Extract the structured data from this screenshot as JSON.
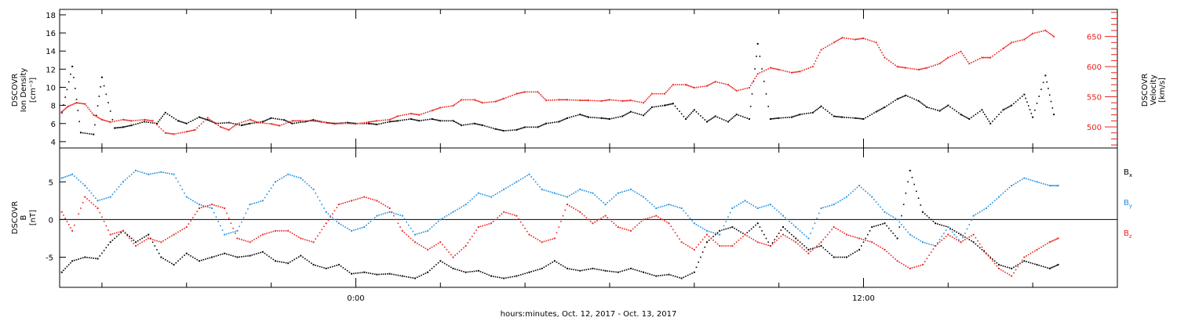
{
  "figure": {
    "xlabel": "hours:minutes, Oct. 12, 2017 - Oct. 13, 2017",
    "colors": {
      "black": "#000000",
      "red": "#e8231e",
      "blue": "#1f8fe0"
    }
  },
  "chart_data": [
    {
      "type": "scatter",
      "title": "",
      "ylabel": [
        "DSCOVR",
        "Ion Density",
        "[cm⁻³]"
      ],
      "y2label": [
        "DSCOVR",
        "Velocity",
        "[km/s]"
      ],
      "xlim": [
        -7.0,
        18.0
      ],
      "xunits": "hours relative to 00:00 Oct. 13, 2017",
      "xticks": [
        {
          "value": 0,
          "label": "0:00"
        },
        {
          "value": 12,
          "label": "12:00"
        }
      ],
      "ylim": [
        3.3,
        18.6
      ],
      "yticks": [
        4,
        6,
        8,
        10,
        12,
        14,
        16,
        18
      ],
      "y2lim": [
        465,
        695
      ],
      "y2ticks": [
        500,
        550,
        600,
        650
      ],
      "series": [
        {
          "key": "density",
          "axis": "left",
          "color": "#000000",
          "x": [
            -6.95,
            -6.7,
            -6.5,
            -6.2,
            -6.0,
            -5.7,
            -5.5,
            -5.3,
            -5.0,
            -4.7,
            -4.5,
            -4.2,
            -4.0,
            -3.7,
            -3.5,
            -3.3,
            -3.0,
            -2.7,
            -2.5,
            -2.2,
            -2.0,
            -1.7,
            -1.5,
            -1.2,
            -1.0,
            -0.7,
            -0.5,
            -0.2,
            0.0,
            0.3,
            0.5,
            0.8,
            1.0,
            1.3,
            1.5,
            1.8,
            2.0,
            2.3,
            2.5,
            2.8,
            3.0,
            3.3,
            3.5,
            3.8,
            4.0,
            4.3,
            4.5,
            4.8,
            5.0,
            5.3,
            5.5,
            5.8,
            6.0,
            6.3,
            6.5,
            6.8,
            7.0,
            7.3,
            7.5,
            7.8,
            8.0,
            8.3,
            8.5,
            8.8,
            9.0,
            9.3,
            9.5,
            9.8,
            10.0,
            10.3,
            10.5,
            10.8,
            11.0,
            11.3,
            11.5,
            11.8,
            12.0,
            12.3,
            12.5,
            12.8,
            13.0,
            13.3,
            13.5,
            13.8,
            14.0,
            14.3,
            14.5,
            14.8,
            15.0,
            15.3,
            15.5,
            15.8,
            16.0,
            16.3,
            16.5
          ],
          "y": [
            7.2,
            12.3,
            5.0,
            4.8,
            11.1,
            5.5,
            5.6,
            5.8,
            6.2,
            6.0,
            7.2,
            6.3,
            6.0,
            6.7,
            6.4,
            6.0,
            6.1,
            5.8,
            6.0,
            6.2,
            6.6,
            6.4,
            6.0,
            6.2,
            6.4,
            6.1,
            6.0,
            6.1,
            6.0,
            6.0,
            5.9,
            6.2,
            6.3,
            6.5,
            6.3,
            6.5,
            6.3,
            6.3,
            5.8,
            6.0,
            5.8,
            5.4,
            5.2,
            5.3,
            5.6,
            5.6,
            6.0,
            6.2,
            6.6,
            7.0,
            6.7,
            6.6,
            6.5,
            6.8,
            7.3,
            6.9,
            7.8,
            8.0,
            8.2,
            6.5,
            7.5,
            6.2,
            6.8,
            6.2,
            7.0,
            6.5,
            14.8,
            6.5,
            6.6,
            6.7,
            7.0,
            7.2,
            7.9,
            6.8,
            6.7,
            6.6,
            6.5,
            7.3,
            7.8,
            8.7,
            9.1,
            8.5,
            7.8,
            7.4,
            8.0,
            7.0,
            6.5,
            7.5,
            6.0,
            7.5,
            8.0,
            9.2,
            6.7,
            11.3,
            7.0
          ]
        },
        {
          "key": "velocity",
          "axis": "right",
          "color": "#e8231e",
          "x": [
            -6.95,
            -6.8,
            -6.6,
            -6.4,
            -6.2,
            -6.0,
            -5.8,
            -5.5,
            -5.3,
            -5.0,
            -4.8,
            -4.5,
            -4.3,
            -4.0,
            -3.8,
            -3.5,
            -3.2,
            -3.0,
            -2.8,
            -2.5,
            -2.3,
            -2.0,
            -1.8,
            -1.5,
            -1.3,
            -1.0,
            -0.8,
            -0.5,
            -0.3,
            0.0,
            0.3,
            0.5,
            0.8,
            1.0,
            1.3,
            1.5,
            1.8,
            2.0,
            2.3,
            2.5,
            2.8,
            3.0,
            3.3,
            3.5,
            3.8,
            4.0,
            4.3,
            4.5,
            4.8,
            5.0,
            5.3,
            5.5,
            5.8,
            6.0,
            6.3,
            6.5,
            6.8,
            7.0,
            7.3,
            7.5,
            7.8,
            8.0,
            8.3,
            8.5,
            8.8,
            9.0,
            9.3,
            9.5,
            9.8,
            10.0,
            10.3,
            10.5,
            10.8,
            11.0,
            11.3,
            11.5,
            11.8,
            12.0,
            12.3,
            12.5,
            12.8,
            13.0,
            13.3,
            13.5,
            13.8,
            14.0,
            14.3,
            14.5,
            14.8,
            15.0,
            15.3,
            15.5,
            15.8,
            16.0,
            16.3,
            16.5
          ],
          "y": [
            525,
            534,
            540,
            538,
            520,
            512,
            508,
            512,
            510,
            512,
            510,
            490,
            488,
            492,
            495,
            515,
            500,
            495,
            505,
            512,
            507,
            505,
            502,
            510,
            510,
            510,
            508,
            505,
            506,
            505,
            508,
            510,
            512,
            518,
            522,
            520,
            527,
            532,
            535,
            545,
            545,
            540,
            542,
            547,
            555,
            558,
            558,
            544,
            545,
            545,
            544,
            544,
            543,
            545,
            543,
            544,
            540,
            555,
            555,
            570,
            570,
            565,
            568,
            575,
            570,
            560,
            565,
            588,
            598,
            595,
            590,
            592,
            600,
            628,
            640,
            648,
            645,
            647,
            640,
            615,
            600,
            598,
            595,
            598,
            605,
            615,
            625,
            605,
            615,
            615,
            630,
            640,
            645,
            655,
            660,
            650
          ]
        }
      ]
    },
    {
      "type": "scatter",
      "title": "",
      "ylabel": [
        "DSCOVR",
        "B",
        "[nT]"
      ],
      "xlim": [
        -7.0,
        18.0
      ],
      "xunits": "hours relative to 00:00 Oct. 13, 2017",
      "xticks": [
        {
          "value": 0,
          "label": "0:00"
        },
        {
          "value": 12,
          "label": "12:00"
        }
      ],
      "ylim": [
        -9.0,
        9.5
      ],
      "yticks": [
        -5,
        0,
        5
      ],
      "zero_line": true,
      "series": [
        {
          "key": "bx",
          "name": "B",
          "sub": "x",
          "color": "#000000",
          "x": [
            -6.95,
            -6.7,
            -6.4,
            -6.1,
            -5.8,
            -5.5,
            -5.2,
            -4.9,
            -4.6,
            -4.3,
            -4.0,
            -3.7,
            -3.4,
            -3.1,
            -2.8,
            -2.5,
            -2.2,
            -1.9,
            -1.6,
            -1.3,
            -1.0,
            -0.7,
            -0.4,
            -0.1,
            0.2,
            0.5,
            0.8,
            1.1,
            1.4,
            1.7,
            2.0,
            2.3,
            2.6,
            2.9,
            3.2,
            3.5,
            3.8,
            4.1,
            4.4,
            4.7,
            5.0,
            5.3,
            5.6,
            5.9,
            6.2,
            6.5,
            6.8,
            7.1,
            7.4,
            7.7,
            8.0,
            8.3,
            8.6,
            8.9,
            9.2,
            9.5,
            9.8,
            10.1,
            10.4,
            10.7,
            11.0,
            11.3,
            11.6,
            11.9,
            12.2,
            12.5,
            12.8,
            13.1,
            13.4,
            13.7,
            14.0,
            14.3,
            14.6,
            14.9,
            15.2,
            15.5,
            15.8,
            16.1,
            16.4,
            16.6
          ],
          "y": [
            -7.0,
            -5.5,
            -5.0,
            -5.2,
            -3.0,
            -1.5,
            -3.0,
            -2.0,
            -5.0,
            -6.0,
            -4.5,
            -5.5,
            -5.0,
            -4.5,
            -5.0,
            -4.8,
            -4.3,
            -5.5,
            -5.8,
            -4.8,
            -6.0,
            -6.5,
            -6.0,
            -7.2,
            -7.0,
            -7.3,
            -7.2,
            -7.5,
            -7.8,
            -7.0,
            -5.5,
            -6.5,
            -7.0,
            -6.8,
            -7.5,
            -7.8,
            -7.5,
            -7.0,
            -6.5,
            -5.5,
            -6.5,
            -6.8,
            -6.5,
            -6.8,
            -7.0,
            -6.5,
            -7.0,
            -7.5,
            -7.3,
            -7.8,
            -7.0,
            -3.0,
            -1.5,
            -1.0,
            -2.0,
            -0.5,
            -3.5,
            -1.0,
            -2.5,
            -4.0,
            -3.5,
            -5.0,
            -5.0,
            -4.0,
            -1.0,
            -0.5,
            -2.5,
            6.5,
            1.0,
            -0.5,
            -1.0,
            -2.0,
            -3.0,
            -4.5,
            -6.0,
            -6.5,
            -5.5,
            -6.0,
            -6.5,
            -6.0
          ]
        },
        {
          "key": "by",
          "name": "B",
          "sub": "y",
          "color": "#1f8fe0",
          "x": [
            -6.95,
            -6.7,
            -6.4,
            -6.1,
            -5.8,
            -5.5,
            -5.2,
            -4.9,
            -4.6,
            -4.3,
            -4.0,
            -3.7,
            -3.4,
            -3.1,
            -2.8,
            -2.5,
            -2.2,
            -1.9,
            -1.6,
            -1.3,
            -1.0,
            -0.7,
            -0.4,
            -0.1,
            0.2,
            0.5,
            0.8,
            1.1,
            1.4,
            1.7,
            2.0,
            2.3,
            2.6,
            2.9,
            3.2,
            3.5,
            3.8,
            4.1,
            4.4,
            4.7,
            5.0,
            5.3,
            5.6,
            5.9,
            6.2,
            6.5,
            6.8,
            7.1,
            7.4,
            7.7,
            8.0,
            8.3,
            8.6,
            8.9,
            9.2,
            9.5,
            9.8,
            10.1,
            10.4,
            10.7,
            11.0,
            11.3,
            11.6,
            11.9,
            12.2,
            12.5,
            12.8,
            13.1,
            13.4,
            13.7,
            14.0,
            14.3,
            14.6,
            14.9,
            15.2,
            15.5,
            15.8,
            16.1,
            16.4,
            16.6
          ],
          "y": [
            5.5,
            6.0,
            4.5,
            2.5,
            3.0,
            5.0,
            6.5,
            6.0,
            6.3,
            6.0,
            3.0,
            2.0,
            1.5,
            -2.0,
            -1.5,
            2.0,
            2.5,
            5.0,
            6.0,
            5.5,
            4.0,
            1.0,
            -0.5,
            -1.5,
            -1.0,
            0.5,
            1.0,
            0.5,
            -2.0,
            -1.5,
            0.0,
            1.0,
            2.0,
            3.5,
            3.0,
            4.0,
            5.0,
            6.0,
            4.0,
            3.5,
            3.0,
            4.0,
            3.5,
            2.0,
            3.5,
            4.0,
            3.0,
            1.5,
            2.0,
            1.5,
            -0.5,
            -1.5,
            -2.0,
            1.5,
            2.5,
            1.5,
            2.0,
            0.5,
            -1.0,
            -2.5,
            1.5,
            2.0,
            3.0,
            4.5,
            3.0,
            1.0,
            0.0,
            -2.0,
            -3.0,
            -3.5,
            -1.0,
            -3.0,
            0.5,
            1.5,
            3.0,
            4.5,
            5.5,
            5.0,
            4.5,
            4.5
          ]
        },
        {
          "key": "bz",
          "name": "B",
          "sub": "z",
          "color": "#e8231e",
          "x": [
            -6.95,
            -6.7,
            -6.4,
            -6.1,
            -5.8,
            -5.5,
            -5.2,
            -4.9,
            -4.6,
            -4.3,
            -4.0,
            -3.7,
            -3.4,
            -3.1,
            -2.8,
            -2.5,
            -2.2,
            -1.9,
            -1.6,
            -1.3,
            -1.0,
            -0.7,
            -0.4,
            -0.1,
            0.2,
            0.5,
            0.8,
            1.1,
            1.4,
            1.7,
            2.0,
            2.3,
            2.6,
            2.9,
            3.2,
            3.5,
            3.8,
            4.1,
            4.4,
            4.7,
            5.0,
            5.3,
            5.6,
            5.9,
            6.2,
            6.5,
            6.8,
            7.1,
            7.4,
            7.7,
            8.0,
            8.3,
            8.6,
            8.9,
            9.2,
            9.5,
            9.8,
            10.1,
            10.4,
            10.7,
            11.0,
            11.3,
            11.6,
            11.9,
            12.2,
            12.5,
            12.8,
            13.1,
            13.4,
            13.7,
            14.0,
            14.3,
            14.6,
            14.9,
            15.2,
            15.5,
            15.8,
            16.1,
            16.4,
            16.6
          ],
          "y": [
            1.0,
            -1.5,
            3.0,
            1.5,
            -2.0,
            -1.5,
            -3.5,
            -2.5,
            -3.0,
            -2.0,
            -1.0,
            1.5,
            2.0,
            1.5,
            -2.5,
            -3.0,
            -2.0,
            -1.5,
            -1.5,
            -2.5,
            -3.0,
            -0.5,
            2.0,
            2.5,
            3.0,
            2.5,
            1.5,
            -1.5,
            -3.0,
            -4.0,
            -3.0,
            -5.0,
            -3.5,
            -1.0,
            -0.5,
            1.0,
            0.5,
            -2.0,
            -3.0,
            -2.5,
            2.0,
            1.0,
            -0.5,
            0.5,
            -1.0,
            -1.5,
            0.0,
            0.5,
            -0.5,
            -3.0,
            -4.0,
            -2.0,
            -3.5,
            -3.5,
            -2.0,
            -3.0,
            -3.5,
            -2.0,
            -3.0,
            -4.5,
            -3.0,
            -1.0,
            -2.0,
            -2.5,
            -3.0,
            -4.0,
            -5.5,
            -6.5,
            -6.0,
            -3.5,
            -2.0,
            -3.0,
            -2.0,
            -4.5,
            -6.5,
            -7.5,
            -5.0,
            -4.0,
            -3.0,
            -2.5
          ]
        }
      ]
    }
  ]
}
